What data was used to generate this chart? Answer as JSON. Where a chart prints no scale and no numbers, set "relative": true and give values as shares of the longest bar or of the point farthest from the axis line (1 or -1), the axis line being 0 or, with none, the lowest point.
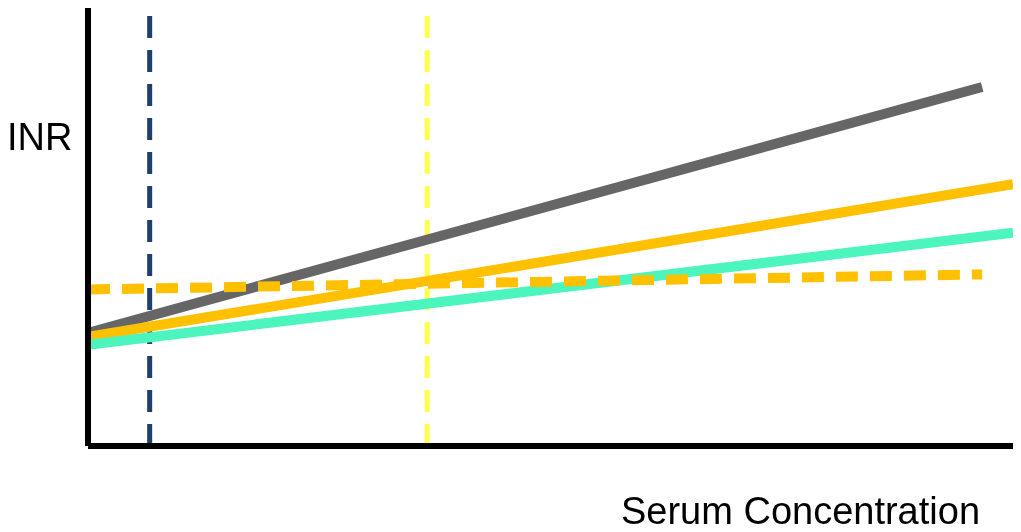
{
  "chart_data": {
    "type": "line",
    "xlabel": "Serum Concentration",
    "ylabel": "INR",
    "relative": true,
    "grid": false,
    "legend": false,
    "marker": "none",
    "categories": [
      null,
      null,
      null,
      null,
      null,
      null,
      null,
      null,
      null,
      null,
      null,
      null,
      null,
      null,
      null,
      null,
      null,
      null,
      null,
      null,
      null,
      null,
      null,
      null,
      null,
      null,
      null,
      null,
      null,
      null,
      null
    ],
    "series": [
      {
        "color": "#666666",
        "values": [
          0.315,
          null,
          null,
          null,
          null,
          null,
          null,
          null,
          null,
          null,
          null,
          null,
          null,
          null,
          null,
          null,
          null,
          null,
          null,
          null,
          null,
          null,
          null,
          null,
          null,
          null,
          null,
          null,
          null,
          1.0,
          null
        ]
      },
      {
        "color": "#ffc000",
        "values": [
          0.304,
          null,
          null,
          null,
          null,
          null,
          null,
          null,
          null,
          null,
          null,
          null,
          null,
          null,
          null,
          null,
          null,
          null,
          null,
          null,
          null,
          null,
          null,
          null,
          null,
          null,
          null,
          null,
          null,
          null,
          0.729
        ]
      },
      {
        "color": "#4bf5bd",
        "values": [
          0.282,
          null,
          null,
          null,
          null,
          null,
          null,
          null,
          null,
          null,
          null,
          null,
          null,
          null,
          null,
          null,
          null,
          null,
          null,
          null,
          null,
          null,
          null,
          null,
          null,
          null,
          null,
          null,
          null,
          null,
          0.594
        ]
      },
      {
        "color": "#ffc000",
        "values": [
          0.436,
          null,
          null,
          null,
          null,
          null,
          null,
          null,
          null,
          null,
          null,
          null,
          null,
          null,
          null,
          null,
          null,
          null,
          null,
          null,
          null,
          null,
          null,
          null,
          null,
          null,
          null,
          null,
          null,
          0.478,
          null
        ],
        "line_style": "dashed"
      }
    ]
  }
}
